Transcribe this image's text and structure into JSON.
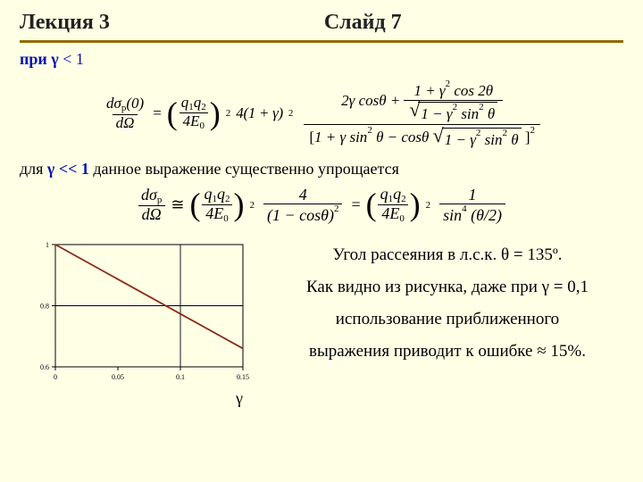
{
  "header": {
    "left": "Лекция 3",
    "right": "Слайд 7",
    "rule_color": "#926a02"
  },
  "condition": {
    "prefix": "при ",
    "sym": "γ",
    "rel": " < 1",
    "color": "#0010b8"
  },
  "formula1": {
    "lhs_num": "dσₚ(0)",
    "lhs_den": "dΩ",
    "coef_num": "q₁q₂",
    "coef_den": "4E₀",
    "coef_pow": "2",
    "four_term": "4(1 + γ)",
    "four_pow": "2",
    "rhs_top_a": "2γ cosθ +",
    "rhs_top_frac_num": "1 + γ² cos 2θ",
    "rhs_top_frac_den_rad": "1 − γ² sin² θ",
    "rhs_bot_inside": "1 + γ sin² θ − cosθ",
    "rhs_bot_rad": "1 − γ² sin² θ",
    "rhs_bot_brackets": "[ ... ]²"
  },
  "simplify_line": {
    "prefix": "для ",
    "sym": "γ",
    "rel": " << 1",
    "rest": " данное выражение существенно упрощается"
  },
  "formula2": {
    "lhs_num": "dσₚ",
    "lhs_den": "dΩ",
    "approx": "≅",
    "coef_num": "q₁q₂",
    "coef_den": "4E₀",
    "coef_pow": "2",
    "mid_num": "4",
    "mid_den": "(1 − cosθ)²",
    "rhs_num": "1",
    "rhs_den": "sin⁴ (θ/2)"
  },
  "chart": {
    "type": "line",
    "background_color": "#ffffe5",
    "frame_color": "#000000",
    "grid_color": "#000000",
    "line_color": "#8b2a1a",
    "line_width": 1.8,
    "xlim": [
      0,
      0.15
    ],
    "ylim": [
      0.6,
      1.0
    ],
    "xticks": [
      0,
      0.05,
      0.1,
      0.15
    ],
    "yticks": [
      0.6,
      0.8,
      1.0
    ],
    "xgrid_at": [
      0.1
    ],
    "ygrid_at": [
      0.8
    ],
    "tick_fontsize": 8,
    "line_points": [
      {
        "x": 0.0,
        "y": 1.0
      },
      {
        "x": 0.15,
        "y": 0.66
      }
    ],
    "x_label": "γ",
    "x_label_fontsize": 18
  },
  "right_text": {
    "l1": "Угол рассеяния в л.с.к. θ = 135º.",
    "l2": "Как видно из рисунка, даже при γ = 0,1",
    "l3": "использование приближенного",
    "l4": "выражения приводит к ошибке ≈ 15%."
  }
}
